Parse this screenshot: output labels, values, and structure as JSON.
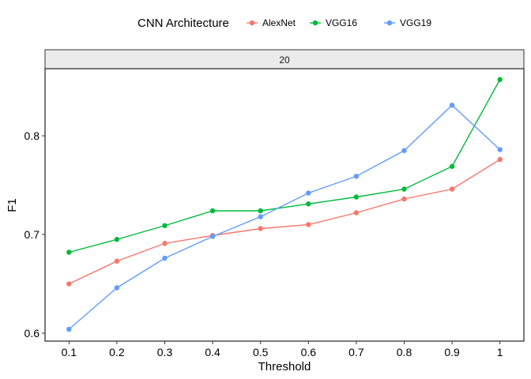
{
  "chart_data": {
    "type": "line",
    "facet_label": "20",
    "legend_title": "CNN Architecture",
    "legend_position": "top",
    "xlabel": "Threshold",
    "ylabel": "F1",
    "x": [
      0.1,
      0.2,
      0.3,
      0.4,
      0.5,
      0.6,
      0.7,
      0.8,
      0.9,
      1
    ],
    "xticks": [
      "0.1",
      "0.2",
      "0.3",
      "0.4",
      "0.5",
      "0.6",
      "0.7",
      "0.8",
      "0.9",
      "1"
    ],
    "yticks": [
      "0.6",
      "0.7",
      "0.8"
    ],
    "ytick_values": [
      0.6,
      0.7,
      0.8
    ],
    "xlim": [
      0.05,
      1.05
    ],
    "ylim": [
      0.592,
      0.868
    ],
    "grid": false,
    "series": [
      {
        "name": "AlexNet",
        "color": "#F8766D",
        "values": [
          0.65,
          0.673,
          0.691,
          0.699,
          0.706,
          0.71,
          0.722,
          0.736,
          0.746,
          0.776
        ]
      },
      {
        "name": "VGG16",
        "color": "#00BA38",
        "values": [
          0.682,
          0.695,
          0.709,
          0.724,
          0.724,
          0.731,
          0.738,
          0.746,
          0.769,
          0.857
        ]
      },
      {
        "name": "VGG19",
        "color": "#619CFF",
        "values": [
          0.604,
          0.646,
          0.676,
          0.698,
          0.718,
          0.742,
          0.759,
          0.785,
          0.831,
          0.786
        ]
      }
    ]
  }
}
